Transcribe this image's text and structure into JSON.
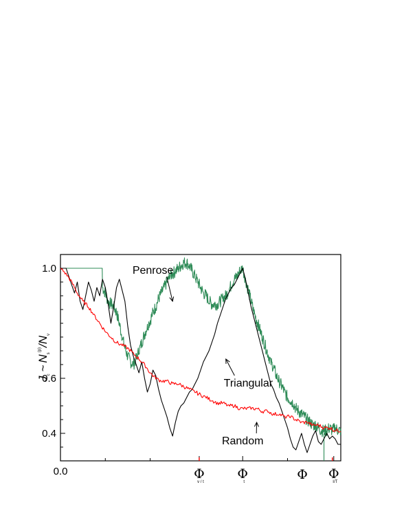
{
  "chart_data": {
    "type": "line",
    "title": "",
    "xlabel": "Φ",
    "xlim": [
      0,
      1.0
    ],
    "ylim": [
      0.3,
      1.05
    ],
    "grid": false,
    "y_ticks": [
      "1.0",
      "0.6",
      "0.4"
    ],
    "y_tick_values": [
      1.0,
      0.6,
      0.4
    ],
    "y_minor_ticks": [
      0.35,
      0.45,
      0.5,
      0.55,
      0.65,
      0.7,
      0.75,
      0.8,
      0.85,
      0.9,
      0.95
    ],
    "x_ticks": [
      {
        "x": 0.0,
        "label": "0.0",
        "symbol": "",
        "sub": ""
      },
      {
        "x": 0.495,
        "label": "",
        "symbol": "Φ",
        "sub": "v / t"
      },
      {
        "x": 0.65,
        "label": "",
        "symbol": "Φ",
        "sub": "t"
      },
      {
        "x": 0.975,
        "label": "",
        "symbol": "Φ",
        "sub": "I/T"
      }
    ],
    "x_minor_ticks": [
      0.16,
      0.32,
      0.81
    ],
    "ylabel": {
      "J": "J",
      "J_sub": "c",
      "tilde": "~",
      "N": "N",
      "N_sub": "s",
      "N_sup": "(p)",
      "slash": "/N",
      "slash_sub": "v"
    },
    "series": [
      {
        "name": "Penrose",
        "color": "#2e8b57",
        "x": [
          0,
          0.04,
          0.08,
          0.12,
          0.149,
          0.15,
          0.16,
          0.17,
          0.18,
          0.19,
          0.2,
          0.21,
          0.22,
          0.23,
          0.24,
          0.25,
          0.26,
          0.27,
          0.28,
          0.29,
          0.3,
          0.31,
          0.32,
          0.33,
          0.34,
          0.35,
          0.36,
          0.37,
          0.38,
          0.39,
          0.4,
          0.41,
          0.42,
          0.43,
          0.44,
          0.45,
          0.46,
          0.47,
          0.48,
          0.49,
          0.5,
          0.51,
          0.52,
          0.53,
          0.54,
          0.55,
          0.56,
          0.57,
          0.58,
          0.59,
          0.6,
          0.61,
          0.62,
          0.63,
          0.64,
          0.65,
          0.66,
          0.67,
          0.68,
          0.69,
          0.7,
          0.71,
          0.72,
          0.73,
          0.74,
          0.75,
          0.76,
          0.77,
          0.78,
          0.79,
          0.8,
          0.81,
          0.82,
          0.83,
          0.84,
          0.85,
          0.86,
          0.87,
          0.88,
          0.89,
          0.9,
          0.91,
          0.92,
          0.93,
          0.94,
          0.95,
          0.96,
          0.97,
          0.98,
          0.99,
          1.0
        ],
        "y": [
          1.0,
          1.0,
          1.0,
          1.0,
          1.0,
          0.93,
          0.91,
          0.88,
          0.87,
          0.86,
          0.84,
          0.8,
          0.75,
          0.71,
          0.68,
          0.66,
          0.65,
          0.67,
          0.7,
          0.73,
          0.76,
          0.79,
          0.81,
          0.84,
          0.86,
          0.89,
          0.91,
          0.93,
          0.95,
          0.97,
          0.98,
          0.99,
          1.0,
          1.01,
          1.02,
          1.02,
          1.01,
          0.99,
          0.97,
          0.95,
          0.93,
          0.91,
          0.9,
          0.88,
          0.87,
          0.87,
          0.87,
          0.88,
          0.89,
          0.9,
          0.92,
          0.94,
          0.96,
          0.97,
          0.99,
          1.0,
          0.96,
          0.92,
          0.88,
          0.84,
          0.81,
          0.78,
          0.75,
          0.72,
          0.69,
          0.66,
          0.64,
          0.61,
          0.59,
          0.57,
          0.55,
          0.53,
          0.52,
          0.51,
          0.49,
          0.48,
          0.47,
          0.46,
          0.45,
          0.44,
          0.43,
          0.43,
          0.42,
          0.41,
          0.41,
          0.41,
          0.42,
          0.41,
          0.42,
          0.41,
          0.41
        ]
      },
      {
        "name": "Triangular",
        "color": "#000000",
        "x": [
          0,
          0.02,
          0.03,
          0.04,
          0.05,
          0.06,
          0.07,
          0.08,
          0.09,
          0.1,
          0.11,
          0.12,
          0.13,
          0.14,
          0.15,
          0.16,
          0.17,
          0.18,
          0.19,
          0.2,
          0.21,
          0.22,
          0.23,
          0.24,
          0.25,
          0.26,
          0.27,
          0.28,
          0.29,
          0.3,
          0.31,
          0.32,
          0.33,
          0.34,
          0.35,
          0.36,
          0.37,
          0.38,
          0.39,
          0.4,
          0.41,
          0.42,
          0.43,
          0.44,
          0.45,
          0.46,
          0.47,
          0.48,
          0.49,
          0.5,
          0.51,
          0.52,
          0.53,
          0.54,
          0.55,
          0.56,
          0.57,
          0.58,
          0.59,
          0.6,
          0.61,
          0.62,
          0.63,
          0.64,
          0.65,
          0.66,
          0.67,
          0.68,
          0.69,
          0.7,
          0.71,
          0.72,
          0.73,
          0.74,
          0.75,
          0.76,
          0.77,
          0.78,
          0.79,
          0.8,
          0.81,
          0.82,
          0.83,
          0.84,
          0.85,
          0.86,
          0.87,
          0.88,
          0.89,
          0.9,
          0.91,
          0.92,
          0.93,
          0.94,
          0.95,
          0.96,
          0.97,
          0.98,
          0.99,
          1.0
        ],
        "y": [
          1.0,
          1.0,
          0.97,
          0.94,
          0.91,
          0.95,
          0.88,
          0.85,
          0.9,
          0.95,
          0.92,
          0.88,
          0.93,
          0.9,
          0.96,
          0.93,
          0.87,
          0.8,
          0.86,
          0.93,
          0.96,
          0.92,
          0.88,
          0.79,
          0.72,
          0.68,
          0.65,
          0.62,
          0.66,
          0.6,
          0.55,
          0.58,
          0.63,
          0.61,
          0.56,
          0.52,
          0.49,
          0.46,
          0.42,
          0.39,
          0.44,
          0.48,
          0.5,
          0.51,
          0.53,
          0.55,
          0.56,
          0.58,
          0.6,
          0.63,
          0.66,
          0.68,
          0.7,
          0.73,
          0.76,
          0.8,
          0.83,
          0.86,
          0.89,
          0.91,
          0.93,
          0.94,
          0.96,
          0.98,
          1.0,
          0.96,
          0.91,
          0.86,
          0.82,
          0.78,
          0.74,
          0.7,
          0.66,
          0.62,
          0.58,
          0.56,
          0.53,
          0.51,
          0.48,
          0.45,
          0.42,
          0.38,
          0.35,
          0.34,
          0.37,
          0.4,
          0.36,
          0.33,
          0.36,
          0.39,
          0.41,
          0.37,
          0.36,
          0.38,
          0.4,
          0.38,
          0.39,
          0.38,
          0.36,
          0.36
        ]
      },
      {
        "name": "Random",
        "color": "#ff0000",
        "x": [
          0,
          0.02,
          0.04,
          0.06,
          0.08,
          0.1,
          0.12,
          0.14,
          0.16,
          0.18,
          0.2,
          0.22,
          0.24,
          0.26,
          0.28,
          0.3,
          0.32,
          0.34,
          0.36,
          0.38,
          0.4,
          0.42,
          0.44,
          0.46,
          0.48,
          0.5,
          0.52,
          0.54,
          0.56,
          0.58,
          0.6,
          0.62,
          0.64,
          0.66,
          0.68,
          0.7,
          0.72,
          0.74,
          0.76,
          0.78,
          0.8,
          0.82,
          0.84,
          0.86,
          0.88,
          0.9,
          0.92,
          0.94,
          0.96,
          0.98,
          1.0
        ],
        "y": [
          1.0,
          0.98,
          0.95,
          0.91,
          0.88,
          0.86,
          0.83,
          0.8,
          0.77,
          0.75,
          0.73,
          0.72,
          0.71,
          0.69,
          0.67,
          0.65,
          0.62,
          0.6,
          0.59,
          0.59,
          0.58,
          0.58,
          0.57,
          0.56,
          0.55,
          0.54,
          0.53,
          0.52,
          0.51,
          0.51,
          0.5,
          0.5,
          0.49,
          0.49,
          0.49,
          0.49,
          0.48,
          0.48,
          0.47,
          0.47,
          0.46,
          0.46,
          0.45,
          0.44,
          0.44,
          0.43,
          0.43,
          0.42,
          0.42,
          0.41,
          0.41
        ]
      }
    ],
    "annotations": [
      {
        "text": "Penrose",
        "series": "Penrose",
        "label_x": 0.33,
        "label_y": 0.98,
        "arrow_x": 0.4,
        "arrow_y": 0.88
      },
      {
        "text": "Triangular",
        "series": "Triangular",
        "label_x": 0.67,
        "label_y": 0.57,
        "arrow_x": 0.59,
        "arrow_y": 0.67
      },
      {
        "text": "Random",
        "series": "Random",
        "label_x": 0.65,
        "label_y": 0.36,
        "arrow_x": 0.7,
        "arrow_y": 0.44
      }
    ]
  }
}
